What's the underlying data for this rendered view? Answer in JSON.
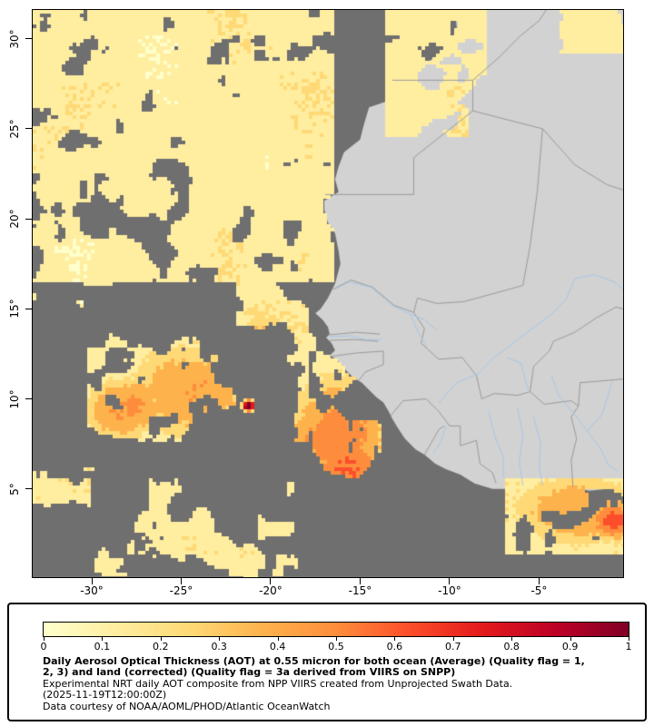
{
  "map": {
    "y_axis": {
      "ticks": [
        {
          "label": "30°",
          "lat": 30
        },
        {
          "label": "25°",
          "lat": 25
        },
        {
          "label": "20°",
          "lat": 20
        },
        {
          "label": "15°",
          "lat": 15
        },
        {
          "label": "10°",
          "lat": 10
        },
        {
          "label": "5°",
          "lat": 5
        }
      ]
    },
    "x_axis": {
      "ticks": [
        {
          "label": "-30°",
          "lon": -30
        },
        {
          "label": "-25°",
          "lon": -25
        },
        {
          "label": "-20°",
          "lon": -20
        },
        {
          "label": "-15°",
          "lon": -15
        },
        {
          "label": "-10°",
          "lon": -10
        },
        {
          "label": "-5°",
          "lon": -5
        }
      ]
    }
  },
  "aot": {
    "palette": [
      "#ffffcc",
      "#ffeda0",
      "#fed976",
      "#feb24c",
      "#fd8d3c",
      "#fc4e2a",
      "#e31a1c",
      "#bd0026",
      "#800026"
    ],
    "no_data_color": "#6f6f6f",
    "land_color": "#d2d2d2",
    "border_color": "#9a9a9a",
    "river_color": "#a6c8e8",
    "frame_color": "#000000"
  },
  "geo": {
    "lon_range": [
      -33.3,
      -0.3
    ],
    "lat_range": [
      0.1,
      31.6
    ],
    "coast": [
      [
        -9.7,
        31.6
      ],
      [
        -9.6,
        30.6
      ],
      [
        -9.9,
        29.9
      ],
      [
        -10.3,
        29.3
      ],
      [
        -11.4,
        28.6
      ],
      [
        -12.1,
        28.1
      ],
      [
        -12.9,
        27.9
      ],
      [
        -13.2,
        27.2
      ],
      [
        -13.6,
        26.5
      ],
      [
        -14.5,
        26.2
      ],
      [
        -14.8,
        25.2
      ],
      [
        -15.0,
        24.4
      ],
      [
        -15.9,
        23.7
      ],
      [
        -16.2,
        22.9
      ],
      [
        -16.4,
        22.2
      ],
      [
        -16.2,
        21.5
      ],
      [
        -17.0,
        21.0
      ],
      [
        -17.0,
        20.5
      ],
      [
        -16.8,
        19.8
      ],
      [
        -16.4,
        19.2
      ],
      [
        -16.2,
        18.2
      ],
      [
        -16.1,
        17.5
      ],
      [
        -16.4,
        16.4
      ],
      [
        -16.8,
        15.6
      ],
      [
        -17.2,
        15.0
      ],
      [
        -17.5,
        14.75
      ],
      [
        -17.1,
        14.4
      ],
      [
        -16.8,
        14.0
      ],
      [
        -16.7,
        13.6
      ],
      [
        -16.9,
        13.4
      ],
      [
        -16.6,
        13.1
      ],
      [
        -16.4,
        12.7
      ],
      [
        -16.7,
        12.4
      ],
      [
        -16.3,
        12.2
      ],
      [
        -15.9,
        11.7
      ],
      [
        -15.4,
        11.2
      ],
      [
        -14.9,
        10.9
      ],
      [
        -14.6,
        10.6
      ],
      [
        -14.1,
        10.1
      ],
      [
        -13.7,
        9.8
      ],
      [
        -13.4,
        9.3
      ],
      [
        -13.2,
        8.9
      ],
      [
        -12.9,
        8.4
      ],
      [
        -12.5,
        7.8
      ],
      [
        -11.9,
        7.2
      ],
      [
        -11.4,
        6.9
      ],
      [
        -10.8,
        6.4
      ],
      [
        -10.2,
        6.1
      ],
      [
        -9.4,
        5.8
      ],
      [
        -8.6,
        5.3
      ],
      [
        -7.6,
        5.0
      ],
      [
        -6.8,
        5.0
      ],
      [
        -5.7,
        5.0
      ],
      [
        -4.8,
        5.2
      ],
      [
        -3.9,
        5.3
      ],
      [
        -3.1,
        5.1
      ],
      [
        -2.2,
        4.9
      ],
      [
        -1.2,
        5.0
      ],
      [
        -0.3,
        5.2
      ],
      [
        -0.3,
        31.6
      ]
    ],
    "borders": [
      [
        [
          -13.2,
          27.7
        ],
        [
          -8.7,
          27.7
        ]
      ],
      [
        [
          -8.7,
          27.7
        ],
        [
          -8.7,
          26.0
        ],
        [
          -12.0,
          23.4
        ],
        [
          -12.0,
          21.35
        ],
        [
          -16.95,
          21.35
        ]
      ],
      [
        [
          -8.7,
          27.7
        ],
        [
          -7.2,
          29.0
        ],
        [
          -6.0,
          30.2
        ],
        [
          -5.0,
          31.0
        ],
        [
          -4.6,
          31.6
        ]
      ],
      [
        [
          -8.7,
          26.0
        ],
        [
          -4.8,
          25.0
        ]
      ],
      [
        [
          -4.8,
          25.0
        ],
        [
          -3.0,
          23.0
        ],
        [
          -1.2,
          21.9
        ],
        [
          -0.3,
          21.6
        ]
      ],
      [
        [
          -4.8,
          25.0
        ],
        [
          -5.1,
          21.5
        ],
        [
          -5.5,
          18.5
        ],
        [
          -5.9,
          16.3
        ],
        [
          -9.2,
          15.4
        ],
        [
          -10.7,
          15.3
        ],
        [
          -11.8,
          15.6
        ],
        [
          -12.0,
          14.8
        ]
      ],
      [
        [
          -16.5,
          16.1
        ],
        [
          -15.5,
          16.6
        ],
        [
          -14.3,
          16.2
        ],
        [
          -13.1,
          15.2
        ],
        [
          -12.0,
          14.8
        ]
      ],
      [
        [
          -12.0,
          14.8
        ],
        [
          -11.4,
          13.9
        ],
        [
          -11.6,
          13.1
        ],
        [
          -10.6,
          12.2
        ],
        [
          -9.3,
          12.3
        ],
        [
          -8.5,
          11.3
        ],
        [
          -8.2,
          10.0
        ]
      ],
      [
        [
          -16.8,
          13.55
        ],
        [
          -15.2,
          13.7
        ],
        [
          -13.9,
          13.6
        ]
      ],
      [
        [
          -16.7,
          13.25
        ],
        [
          -15.3,
          13.3
        ],
        [
          -14.0,
          13.2
        ]
      ],
      [
        [
          -16.7,
          12.35
        ],
        [
          -15.2,
          12.55
        ],
        [
          -13.7,
          12.65
        ],
        [
          -13.7,
          11.9
        ],
        [
          -14.7,
          11.5
        ],
        [
          -15.1,
          11.0
        ]
      ],
      [
        [
          -13.3,
          9.05
        ],
        [
          -12.6,
          9.9
        ],
        [
          -11.3,
          10.0
        ],
        [
          -10.6,
          9.3
        ],
        [
          -10.0,
          8.5
        ],
        [
          -9.4,
          8.5
        ],
        [
          -9.4,
          7.4
        ],
        [
          -8.5,
          7.7
        ],
        [
          -8.3,
          6.4
        ],
        [
          -7.6,
          5.9
        ],
        [
          -7.4,
          5.3
        ]
      ],
      [
        [
          -11.4,
          6.9
        ],
        [
          -10.6,
          8.3
        ],
        [
          -10.3,
          8.5
        ]
      ],
      [
        [
          -8.2,
          10.0
        ],
        [
          -7.5,
          10.3
        ],
        [
          -6.2,
          10.2
        ],
        [
          -5.5,
          10.4
        ],
        [
          -4.7,
          9.7
        ],
        [
          -3.2,
          9.9
        ],
        [
          -2.8,
          9.6
        ]
      ],
      [
        [
          -3.1,
          5.1
        ],
        [
          -3.2,
          6.6
        ],
        [
          -2.9,
          7.8
        ],
        [
          -3.2,
          9.0
        ],
        [
          -2.8,
          9.6
        ],
        [
          -2.7,
          10.9
        ]
      ],
      [
        [
          -5.5,
          10.4
        ],
        [
          -5.3,
          11.8
        ],
        [
          -4.4,
          12.7
        ],
        [
          -4.2,
          13.2
        ],
        [
          -3.0,
          13.7
        ],
        [
          -1.8,
          14.5
        ],
        [
          -0.7,
          15.1
        ],
        [
          -0.3,
          15.0
        ]
      ],
      [
        [
          -2.7,
          10.9
        ],
        [
          -1.5,
          11.0
        ],
        [
          -0.3,
          11.1
        ]
      ]
    ],
    "rivers": [
      [
        [
          -16.5,
          16.05
        ],
        [
          -15.6,
          16.5
        ],
        [
          -14.4,
          16.2
        ],
        [
          -13.2,
          15.2
        ],
        [
          -12.2,
          14.7
        ],
        [
          -11.4,
          14.4
        ],
        [
          -10.7,
          13.8
        ]
      ],
      [
        [
          -12.2,
          14.7
        ],
        [
          -11.8,
          13.8
        ],
        [
          -11.3,
          12.9
        ]
      ],
      [
        [
          -16.75,
          13.45
        ],
        [
          -15.5,
          13.5
        ],
        [
          -14.7,
          13.3
        ],
        [
          -13.8,
          13.3
        ]
      ],
      [
        [
          -10.6,
          9.8
        ],
        [
          -9.6,
          10.9
        ],
        [
          -8.4,
          11.4
        ],
        [
          -7.5,
          12.3
        ],
        [
          -6.3,
          13.2
        ],
        [
          -5.4,
          13.9
        ],
        [
          -4.3,
          14.7
        ],
        [
          -3.5,
          15.5
        ],
        [
          -3.0,
          16.7
        ],
        [
          -1.9,
          16.9
        ],
        [
          -0.8,
          16.5
        ],
        [
          -0.3,
          16.1
        ]
      ],
      [
        [
          -6.8,
          12.3
        ],
        [
          -6.0,
          12.0
        ],
        [
          -5.8,
          11.2
        ],
        [
          -5.6,
          10.5
        ]
      ],
      [
        [
          -4.3,
          11.3
        ],
        [
          -3.9,
          10.2
        ],
        [
          -2.9,
          9.0
        ],
        [
          -2.3,
          8.2
        ],
        [
          -1.6,
          7.3
        ],
        [
          -1.1,
          6.3
        ],
        [
          -0.6,
          6.0
        ]
      ],
      [
        [
          -0.9,
          11.0
        ],
        [
          -1.2,
          10.0
        ],
        [
          -1.5,
          9.1
        ],
        [
          -2.3,
          8.2
        ]
      ],
      [
        [
          -6.2,
          9.5
        ],
        [
          -5.9,
          8.0
        ],
        [
          -6.1,
          6.5
        ],
        [
          -5.9,
          5.2
        ]
      ],
      [
        [
          -5.3,
          9.0
        ],
        [
          -4.9,
          7.5
        ],
        [
          -5.0,
          6.2
        ],
        [
          -4.8,
          5.2
        ]
      ],
      [
        [
          -7.8,
          9.3
        ],
        [
          -7.5,
          8.0
        ],
        [
          -7.0,
          6.8
        ],
        [
          -7.0,
          5.6
        ]
      ],
      [
        [
          -10.2,
          8.5
        ],
        [
          -10.5,
          7.6
        ],
        [
          -10.9,
          7.0
        ]
      ]
    ]
  },
  "legend": {
    "colorbar_tick_labels": [
      "0",
      "0.1",
      "0.2",
      "0.3",
      "0.4",
      "0.5",
      "0.6",
      "0.7",
      "0.8",
      "0.9",
      "1"
    ],
    "caption_bold_line1": "Daily Aerosol Optical Thickness (AOT) at 0.55 micron for both ocean (Average) (Quality flag = 1,",
    "caption_bold_line2": "2, 3) and land (corrected) (Quality flag = 3a derived from VIIRS on SNPP)",
    "note_line1": "Experimental NRT daily AOT composite from NPP VIIRS created from Unprojected Swath Data.",
    "note_line2": "(2025-11-19T12:00:00Z)",
    "note_line3": "Data courtesy of NOAA/AOML/PHOD/Atlantic OceanWatch"
  }
}
